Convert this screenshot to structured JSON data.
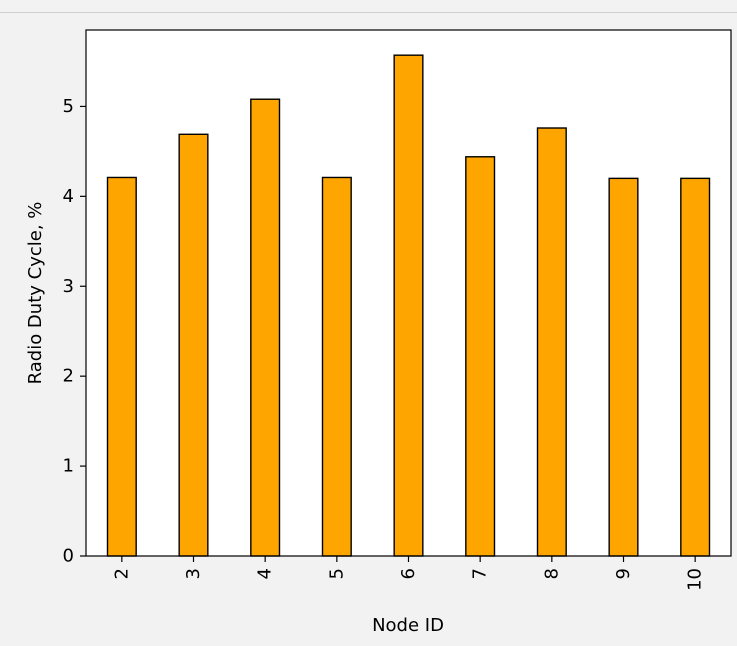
{
  "chart_data": {
    "type": "bar",
    "title": "",
    "xlabel": "Node ID",
    "ylabel": "Radio Duty Cycle, %",
    "categories": [
      "2",
      "3",
      "4",
      "5",
      "6",
      "7",
      "8",
      "9",
      "10"
    ],
    "values": [
      4.21,
      4.69,
      5.08,
      4.21,
      5.57,
      4.44,
      4.76,
      4.2,
      4.2
    ],
    "ylim": [
      0,
      5.85
    ],
    "yticks": [
      0,
      1,
      2,
      3,
      4,
      5
    ],
    "grid": false,
    "legend": "none",
    "bar_color": "#ffa500",
    "edge_color": "#000000",
    "x_tick_rotation": "vertical"
  }
}
